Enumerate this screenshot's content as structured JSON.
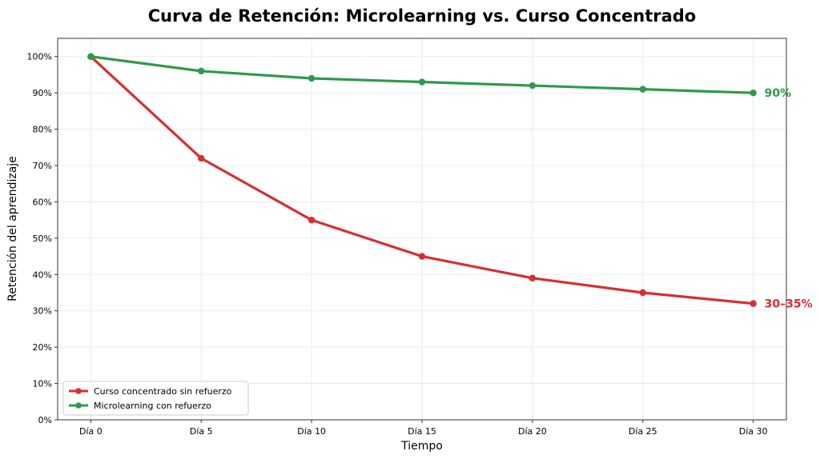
{
  "chart_data": {
    "type": "line",
    "title": "Curva de Retención: Microlearning vs. Curso Concentrado",
    "xlabel": "Tiempo",
    "ylabel": "Retención del aprendizaje",
    "categories": [
      "Día 0",
      "Día 5",
      "Día 10",
      "Día 15",
      "Día 20",
      "Día 25",
      "Día 30"
    ],
    "x": [
      0,
      5,
      10,
      15,
      20,
      25,
      30
    ],
    "yticks": [
      "0%",
      "10%",
      "20%",
      "30%",
      "40%",
      "50%",
      "60%",
      "70%",
      "80%",
      "90%",
      "100%"
    ],
    "ylim": [
      0,
      105
    ],
    "grid": true,
    "legend_position": "lower-left",
    "series": [
      {
        "name": "Curso concentrado sin refuerzo",
        "color": "#d62f33",
        "values": [
          100,
          72,
          55,
          45,
          39,
          35,
          32
        ],
        "end_label": "30–35%"
      },
      {
        "name": "Microlearning con refuerzo",
        "color": "#2e9a4c",
        "values": [
          100,
          96,
          94,
          93,
          92,
          91,
          90
        ],
        "end_label": "90%"
      }
    ]
  }
}
